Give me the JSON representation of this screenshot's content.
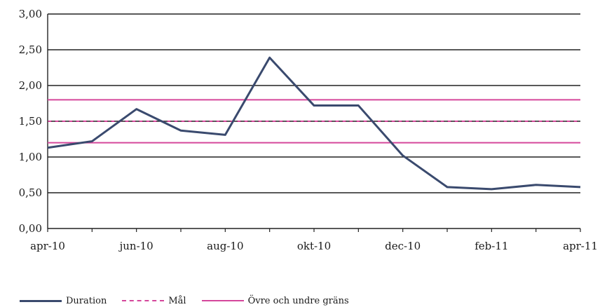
{
  "chart_data": {
    "type": "line",
    "x": [
      "apr-10",
      "maj-10",
      "jun-10",
      "jul-10",
      "aug-10",
      "sep-10",
      "okt-10",
      "nov-10",
      "dec-10",
      "jan-11",
      "feb-11",
      "mar-11",
      "apr-11"
    ],
    "x_tick_labels": [
      "apr-10",
      "jun-10",
      "aug-10",
      "okt-10",
      "dec-10",
      "feb-11",
      "apr-11"
    ],
    "y_tick_labels": [
      "0,00",
      "0,50",
      "1,00",
      "1,50",
      "2,00",
      "2,50",
      "3,00"
    ],
    "ylim": [
      0,
      3
    ],
    "grid": true,
    "legend_position": "bottom-left",
    "series": [
      {
        "name": "Duration",
        "style": "solid",
        "color": "#3a4a6e",
        "values": [
          1.13,
          1.22,
          1.67,
          1.37,
          1.31,
          2.39,
          1.72,
          1.72,
          1.02,
          0.58,
          0.55,
          0.61,
          0.58
        ]
      },
      {
        "name": "Mål",
        "style": "dashed",
        "color": "#d5479b",
        "values": [
          1.5,
          1.5,
          1.5,
          1.5,
          1.5,
          1.5,
          1.5,
          1.5,
          1.5,
          1.5,
          1.5,
          1.5,
          1.5
        ]
      },
      {
        "name": "Övre och undre gräns",
        "style": "solid",
        "color": "#d5479b",
        "upper": [
          1.8,
          1.8,
          1.8,
          1.8,
          1.8,
          1.8,
          1.8,
          1.8,
          1.8,
          1.8,
          1.8,
          1.8,
          1.8
        ],
        "lower": [
          1.2,
          1.2,
          1.2,
          1.2,
          1.2,
          1.2,
          1.2,
          1.2,
          1.2,
          1.2,
          1.2,
          1.2,
          1.2
        ]
      }
    ]
  }
}
